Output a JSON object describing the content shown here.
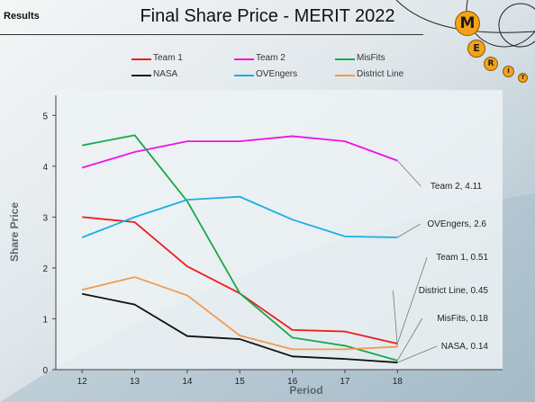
{
  "header": {
    "section_label": "Results",
    "title": "Final Share Price - MERIT 2022",
    "logo_letters": [
      "M",
      "E",
      "R",
      "I",
      "T"
    ]
  },
  "chart_data": {
    "type": "line",
    "title": "Final Share Price - MERIT 2022",
    "xlabel": "Period",
    "ylabel": "Share Price",
    "x": [
      12,
      13,
      14,
      15,
      16,
      17,
      18
    ],
    "xlim": [
      11.5,
      20
    ],
    "ylim": [
      0,
      5.5
    ],
    "yticks": [
      0,
      1,
      2,
      3,
      4,
      5
    ],
    "grid": false,
    "legend_position": "top",
    "series": [
      {
        "name": "Team 1",
        "color": "#ee1c1c",
        "values": [
          3.0,
          2.9,
          2.03,
          1.5,
          0.78,
          0.75,
          0.51
        ],
        "end_label": "Team 1, 0.51"
      },
      {
        "name": "Team 2",
        "color": "#f011e6",
        "values": [
          3.97,
          4.28,
          4.49,
          4.49,
          4.59,
          4.49,
          4.11
        ],
        "end_label": "Team 2, 4.11"
      },
      {
        "name": "MisFits",
        "color": "#18a84a",
        "values": [
          4.41,
          4.61,
          3.31,
          1.5,
          0.63,
          0.47,
          0.18
        ],
        "end_label": "MisFits, 0.18"
      },
      {
        "name": "NASA",
        "color": "#111111",
        "values": [
          1.49,
          1.28,
          0.66,
          0.6,
          0.26,
          0.21,
          0.14
        ],
        "end_label": "NASA, 0.14"
      },
      {
        "name": "OVEngers",
        "color": "#1aaee4",
        "values": [
          2.6,
          3.0,
          3.34,
          3.4,
          2.95,
          2.62,
          2.6
        ],
        "end_label": "OVEngers, 2.6"
      },
      {
        "name": "District Line",
        "color": "#f29a4e",
        "values": [
          1.57,
          1.82,
          1.46,
          0.67,
          0.4,
          0.4,
          0.45
        ],
        "end_label": "District Line, 0.45"
      }
    ]
  }
}
